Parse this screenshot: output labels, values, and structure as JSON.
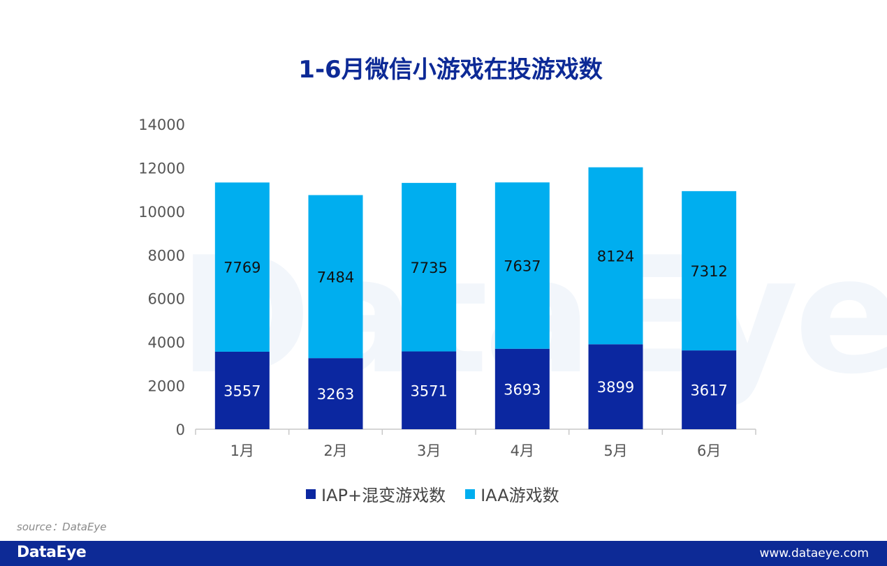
{
  "chart_data": {
    "type": "bar",
    "stacked": true,
    "title": "1-6月微信小游戏在投游戏数",
    "categories": [
      "1月",
      "2月",
      "3月",
      "4月",
      "5月",
      "6月"
    ],
    "series": [
      {
        "name": "IAP+混变游戏数",
        "values": [
          3557,
          3263,
          3571,
          3693,
          3899,
          3617
        ],
        "color": "#0b27a0",
        "label_color": "#ffffff"
      },
      {
        "name": "IAA游戏数",
        "values": [
          7769,
          7484,
          7735,
          7637,
          8124,
          7312
        ],
        "color": "#00aeef",
        "label_color": "#111111"
      }
    ],
    "ylim": [
      0,
      14000
    ],
    "yticks": [
      0,
      2000,
      4000,
      6000,
      8000,
      10000,
      12000,
      14000
    ],
    "grid": false,
    "legend_position": "bottom"
  },
  "watermark": "DataEye",
  "source_text": "source：DataEye",
  "footer": {
    "logo": "DataEye",
    "url": "www.dataeye.com"
  }
}
